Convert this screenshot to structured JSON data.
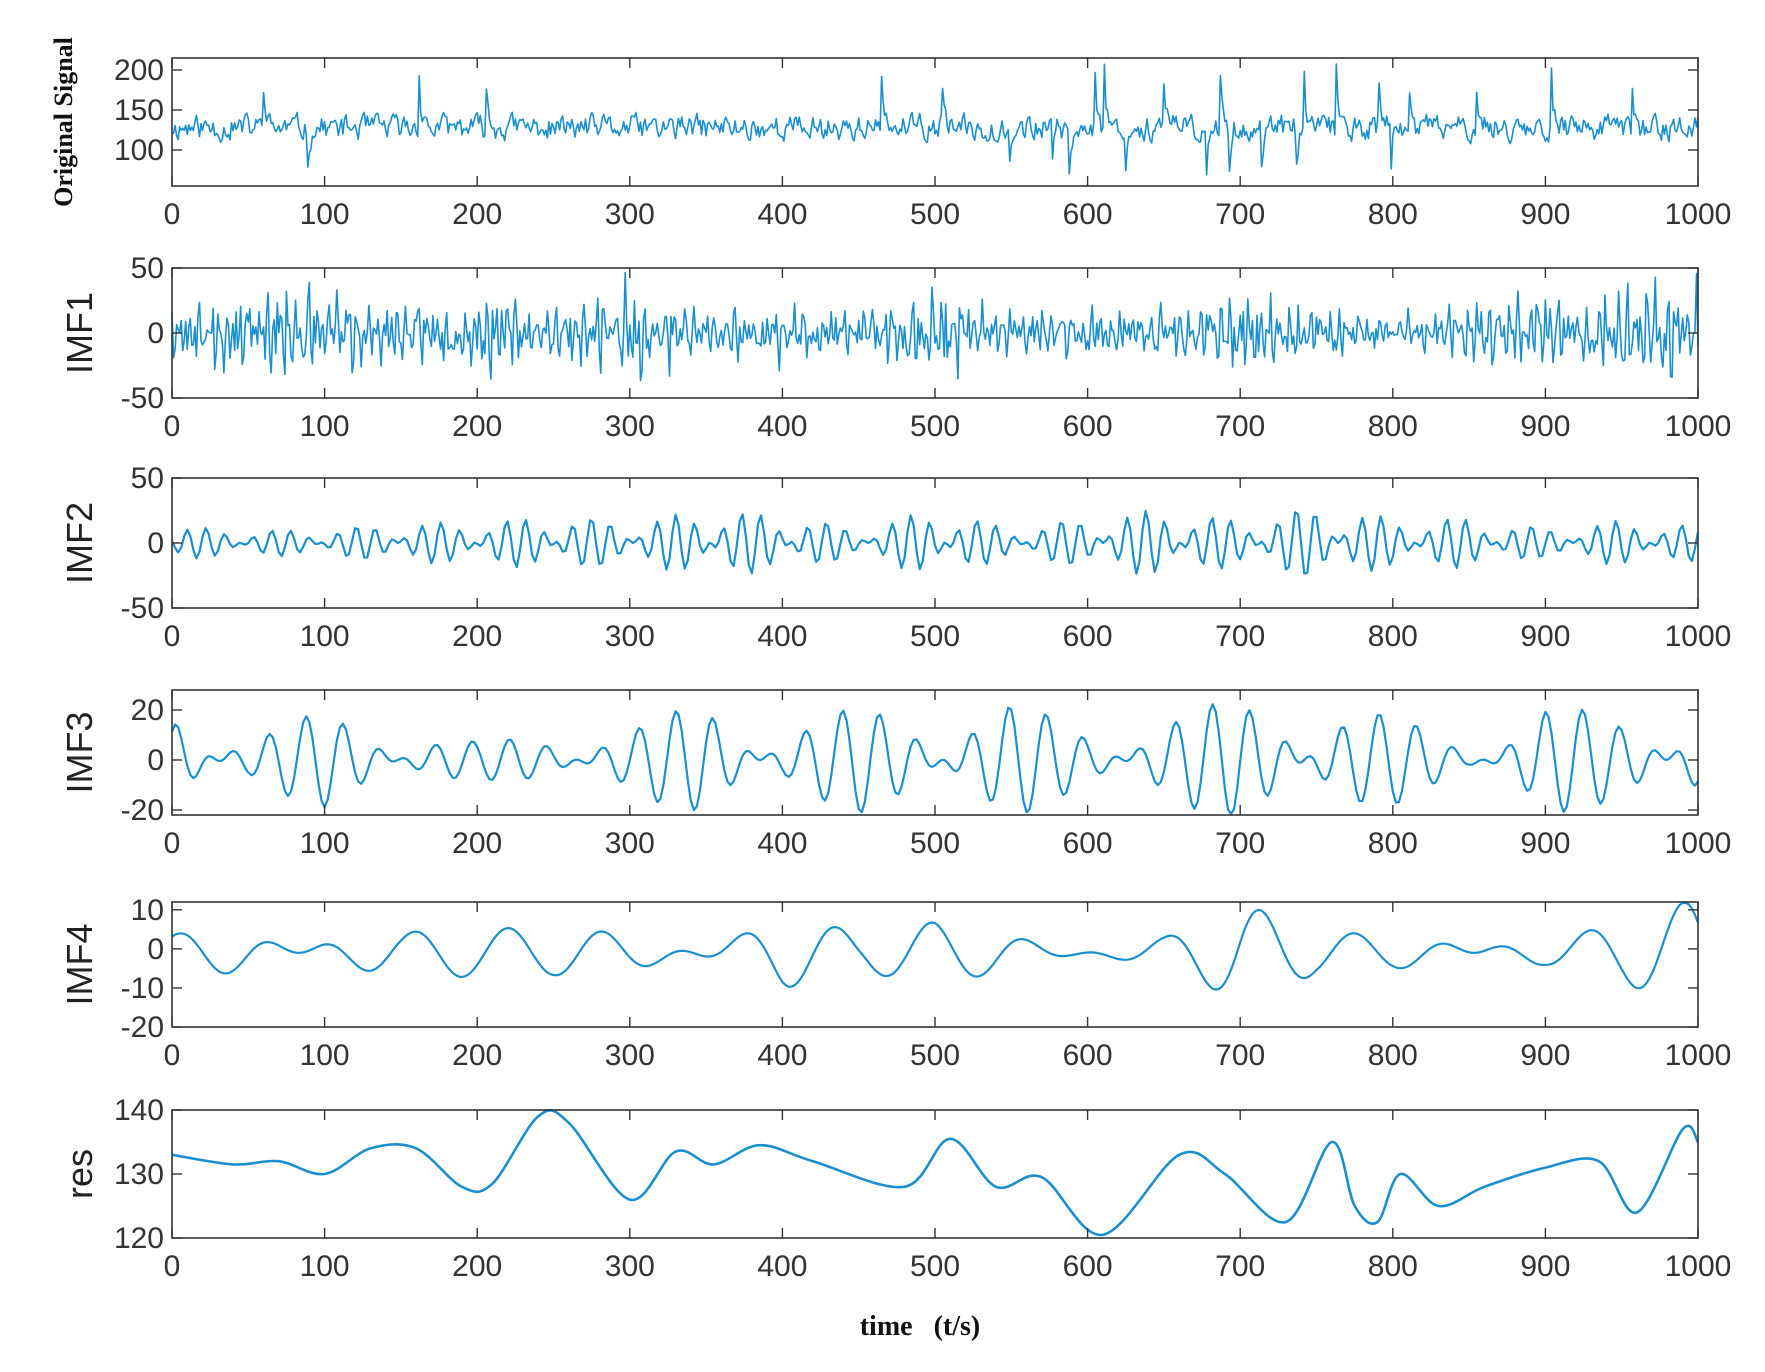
{
  "colors": {
    "line": "#1a8fd0",
    "axis": "#333333",
    "background": "#ffffff"
  },
  "xlabel": "time   (t/s)",
  "chart_data": [
    {
      "type": "line",
      "name": "original",
      "ylabel": "Original Signal",
      "x_range": [
        0,
        1000
      ],
      "xticks": [
        0,
        100,
        200,
        300,
        400,
        500,
        600,
        700,
        800,
        900,
        1000
      ],
      "ylim": [
        55,
        215
      ],
      "yticks": [
        100,
        150,
        200
      ],
      "gen": {
        "kind": "noise",
        "base": 128,
        "amp": 11,
        "spikes": 24,
        "seed": 11
      }
    },
    {
      "type": "line",
      "name": "imf1",
      "ylabel": "IMF1",
      "x_range": [
        0,
        1000
      ],
      "xticks": [
        0,
        100,
        200,
        300,
        400,
        500,
        600,
        700,
        800,
        900,
        1000
      ],
      "ylim": [
        -50,
        50
      ],
      "yticks": [
        -50,
        0,
        50
      ],
      "gen": {
        "kind": "sum",
        "base": 0,
        "amp": 16,
        "periods": [
          3,
          4.5,
          6.5
        ],
        "seed": 23
      }
    },
    {
      "type": "line",
      "name": "imf2",
      "ylabel": "IMF2",
      "x_range": [
        0,
        1000
      ],
      "xticks": [
        0,
        100,
        200,
        300,
        400,
        500,
        600,
        700,
        800,
        900,
        1000
      ],
      "ylim": [
        -50,
        50
      ],
      "yticks": [
        -50,
        0,
        50
      ],
      "gen": {
        "kind": "sum",
        "base": 0,
        "amp": 13,
        "periods": [
          11,
          14
        ],
        "seed": 37
      }
    },
    {
      "type": "line",
      "name": "imf3",
      "ylabel": "IMF3",
      "x_range": [
        0,
        1000
      ],
      "xticks": [
        0,
        100,
        200,
        300,
        400,
        500,
        600,
        700,
        800,
        900,
        1000
      ],
      "ylim": [
        -22,
        28
      ],
      "yticks": [
        -20,
        0,
        20
      ],
      "gen": {
        "kind": "sum",
        "base": 0,
        "amp": 10,
        "periods": [
          22,
          27
        ],
        "seed": 41
      }
    },
    {
      "type": "line",
      "name": "imf4",
      "ylabel": "IMF4",
      "x_range": [
        0,
        1000
      ],
      "xticks": [
        0,
        100,
        200,
        300,
        400,
        500,
        600,
        700,
        800,
        900,
        1000
      ],
      "ylim": [
        -20,
        12
      ],
      "yticks": [
        -20,
        -10,
        0,
        10
      ],
      "gen": {
        "kind": "sum",
        "base": -1,
        "amp": 6,
        "periods": [
          55,
          70
        ],
        "seed": 53
      }
    },
    {
      "type": "line",
      "name": "res",
      "ylabel": "res",
      "x_range": [
        0,
        1000
      ],
      "xticks": [
        0,
        100,
        200,
        300,
        400,
        500,
        600,
        700,
        800,
        900,
        1000
      ],
      "ylim": [
        120,
        140
      ],
      "yticks": [
        120,
        130,
        140
      ],
      "points": [
        [
          0,
          133
        ],
        [
          40,
          131.5
        ],
        [
          70,
          132
        ],
        [
          100,
          130
        ],
        [
          130,
          134
        ],
        [
          160,
          134
        ],
        [
          190,
          128
        ],
        [
          210,
          128.5
        ],
        [
          240,
          139
        ],
        [
          260,
          138
        ],
        [
          300,
          126
        ],
        [
          330,
          133.5
        ],
        [
          355,
          131.5
        ],
        [
          385,
          134.5
        ],
        [
          420,
          132
        ],
        [
          480,
          128
        ],
        [
          510,
          135.5
        ],
        [
          540,
          128
        ],
        [
          570,
          129.5
        ],
        [
          610,
          120.5
        ],
        [
          660,
          133
        ],
        [
          690,
          130
        ],
        [
          730,
          122.5
        ],
        [
          760,
          135
        ],
        [
          775,
          125
        ],
        [
          790,
          122.5
        ],
        [
          805,
          130
        ],
        [
          830,
          125
        ],
        [
          860,
          128
        ],
        [
          900,
          131
        ],
        [
          935,
          132
        ],
        [
          960,
          124
        ],
        [
          990,
          137
        ],
        [
          1000,
          135
        ]
      ]
    }
  ]
}
